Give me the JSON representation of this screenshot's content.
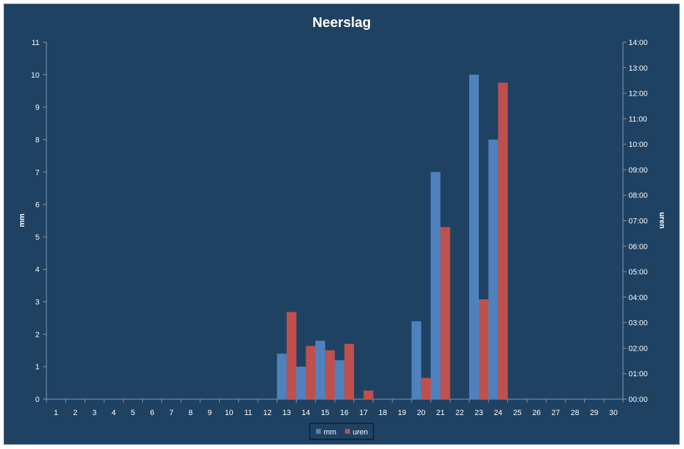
{
  "chart_data": {
    "type": "bar",
    "title": "Neerslag",
    "xlabel": "",
    "ylabel": "mm",
    "y2label": "uren",
    "categories": [
      "1",
      "2",
      "3",
      "4",
      "5",
      "6",
      "7",
      "8",
      "9",
      "10",
      "11",
      "12",
      "13",
      "14",
      "15",
      "16",
      "17",
      "18",
      "19",
      "20",
      "21",
      "22",
      "23",
      "24",
      "25",
      "26",
      "27",
      "28",
      "29",
      "30"
    ],
    "ylim": [
      0,
      11
    ],
    "y2lim": [
      "00:00",
      "14:00"
    ],
    "yticks": [
      "0",
      "1",
      "2",
      "3",
      "4",
      "5",
      "6",
      "7",
      "8",
      "9",
      "10",
      "11"
    ],
    "y2ticks": [
      "00:00",
      "01:00",
      "02:00",
      "03:00",
      "04:00",
      "05:00",
      "06:00",
      "07:00",
      "08:00",
      "09:00",
      "10:00",
      "11:00",
      "12:00",
      "13:00",
      "14:00"
    ],
    "series": [
      {
        "name": "mm",
        "axis": "left",
        "color": "#4f81bd",
        "values": [
          0,
          0,
          0,
          0,
          0,
          0,
          0,
          0,
          0,
          0,
          0,
          0,
          1.4,
          1.0,
          1.8,
          1.2,
          0,
          0,
          0,
          2.4,
          7.0,
          0,
          10.0,
          8.0,
          0,
          0,
          0,
          0,
          0,
          0
        ]
      },
      {
        "name": "uren",
        "axis": "right",
        "color": "#c0504d",
        "values": [
          "00:00",
          "00:00",
          "00:00",
          "00:00",
          "00:00",
          "00:00",
          "00:00",
          "00:00",
          "00:00",
          "00:00",
          "00:00",
          "00:00",
          "03:25",
          "02:05",
          "01:55",
          "02:10",
          "00:20",
          "00:00",
          "00:00",
          "00:50",
          "06:45",
          "00:00",
          "03:55",
          "12:25",
          "00:00",
          "00:00",
          "00:00",
          "00:00",
          "00:00",
          "00:00"
        ]
      }
    ],
    "legend": "bottom",
    "grid": false,
    "background": "#1f4263"
  }
}
